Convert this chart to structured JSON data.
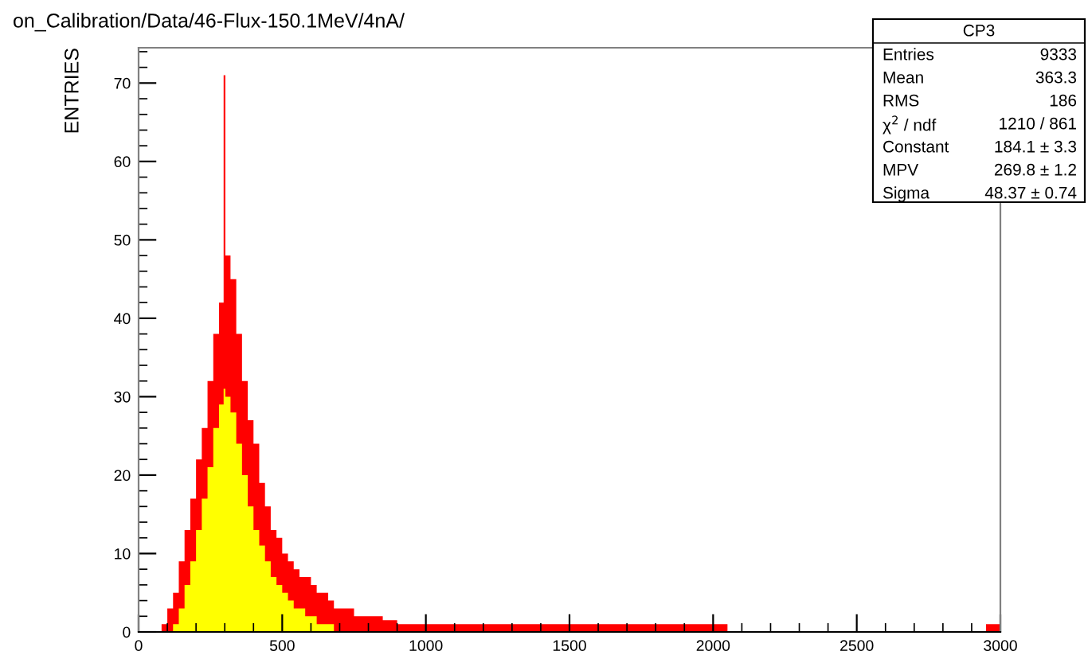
{
  "chart_data": {
    "type": "histogram",
    "title": "on_Calibration/Data/46-Flux-150.1MeV/4nA/",
    "ylabel": "ENTRIES",
    "bins": [
      80,
      100,
      120,
      140,
      160,
      180,
      200,
      220,
      240,
      260,
      280,
      296,
      302,
      320,
      340,
      360,
      380,
      400,
      420,
      440,
      460,
      480,
      500,
      520,
      540,
      560,
      580,
      600,
      620,
      640,
      660,
      680,
      700,
      750,
      800,
      850,
      900,
      950,
      1000,
      1100,
      1200,
      1300,
      1500,
      2050,
      2950,
      3000
    ],
    "series": [
      {
        "color": "#ff0000",
        "values": [
          1,
          3,
          5,
          9,
          13,
          17,
          22,
          26,
          32,
          38,
          42,
          71,
          48,
          45,
          38,
          32,
          27,
          24,
          19,
          16,
          13,
          12,
          10,
          9,
          8,
          7,
          7,
          6,
          5,
          5,
          4,
          3,
          3,
          2,
          2,
          1.5,
          1,
          1,
          1,
          1,
          1,
          1,
          1,
          0,
          1
        ]
      },
      {
        "color": "#ffff00",
        "values": [
          0,
          0,
          1,
          3,
          6,
          9,
          13,
          17,
          21,
          26,
          29,
          31,
          30,
          28,
          24,
          20,
          16,
          13,
          11,
          9,
          7,
          6,
          5,
          4,
          3,
          3,
          2,
          2,
          1,
          1,
          1,
          0,
          0,
          0,
          0,
          0,
          0,
          0,
          0,
          0,
          0,
          0,
          0,
          0,
          0
        ]
      }
    ],
    "xlim": [
      0,
      3000
    ],
    "xticks": [
      0,
      500,
      1000,
      1500,
      2000,
      2500,
      3000
    ],
    "ylim": [
      0,
      74.5
    ],
    "yticks": [
      0,
      10,
      20,
      30,
      40,
      50,
      60,
      70
    ],
    "grid": false,
    "annotations": [
      "CP3",
      "Entries",
      "9333",
      "Mean",
      "363.3",
      "RMS",
      "186",
      "χ$^{2}$ / ndf",
      "1210 / 861",
      "Constant",
      "184.1 ± 3.3",
      "MPV",
      "269.8 ± 1.2",
      "Sigma",
      "48.37 ± 0.74"
    ]
  }
}
